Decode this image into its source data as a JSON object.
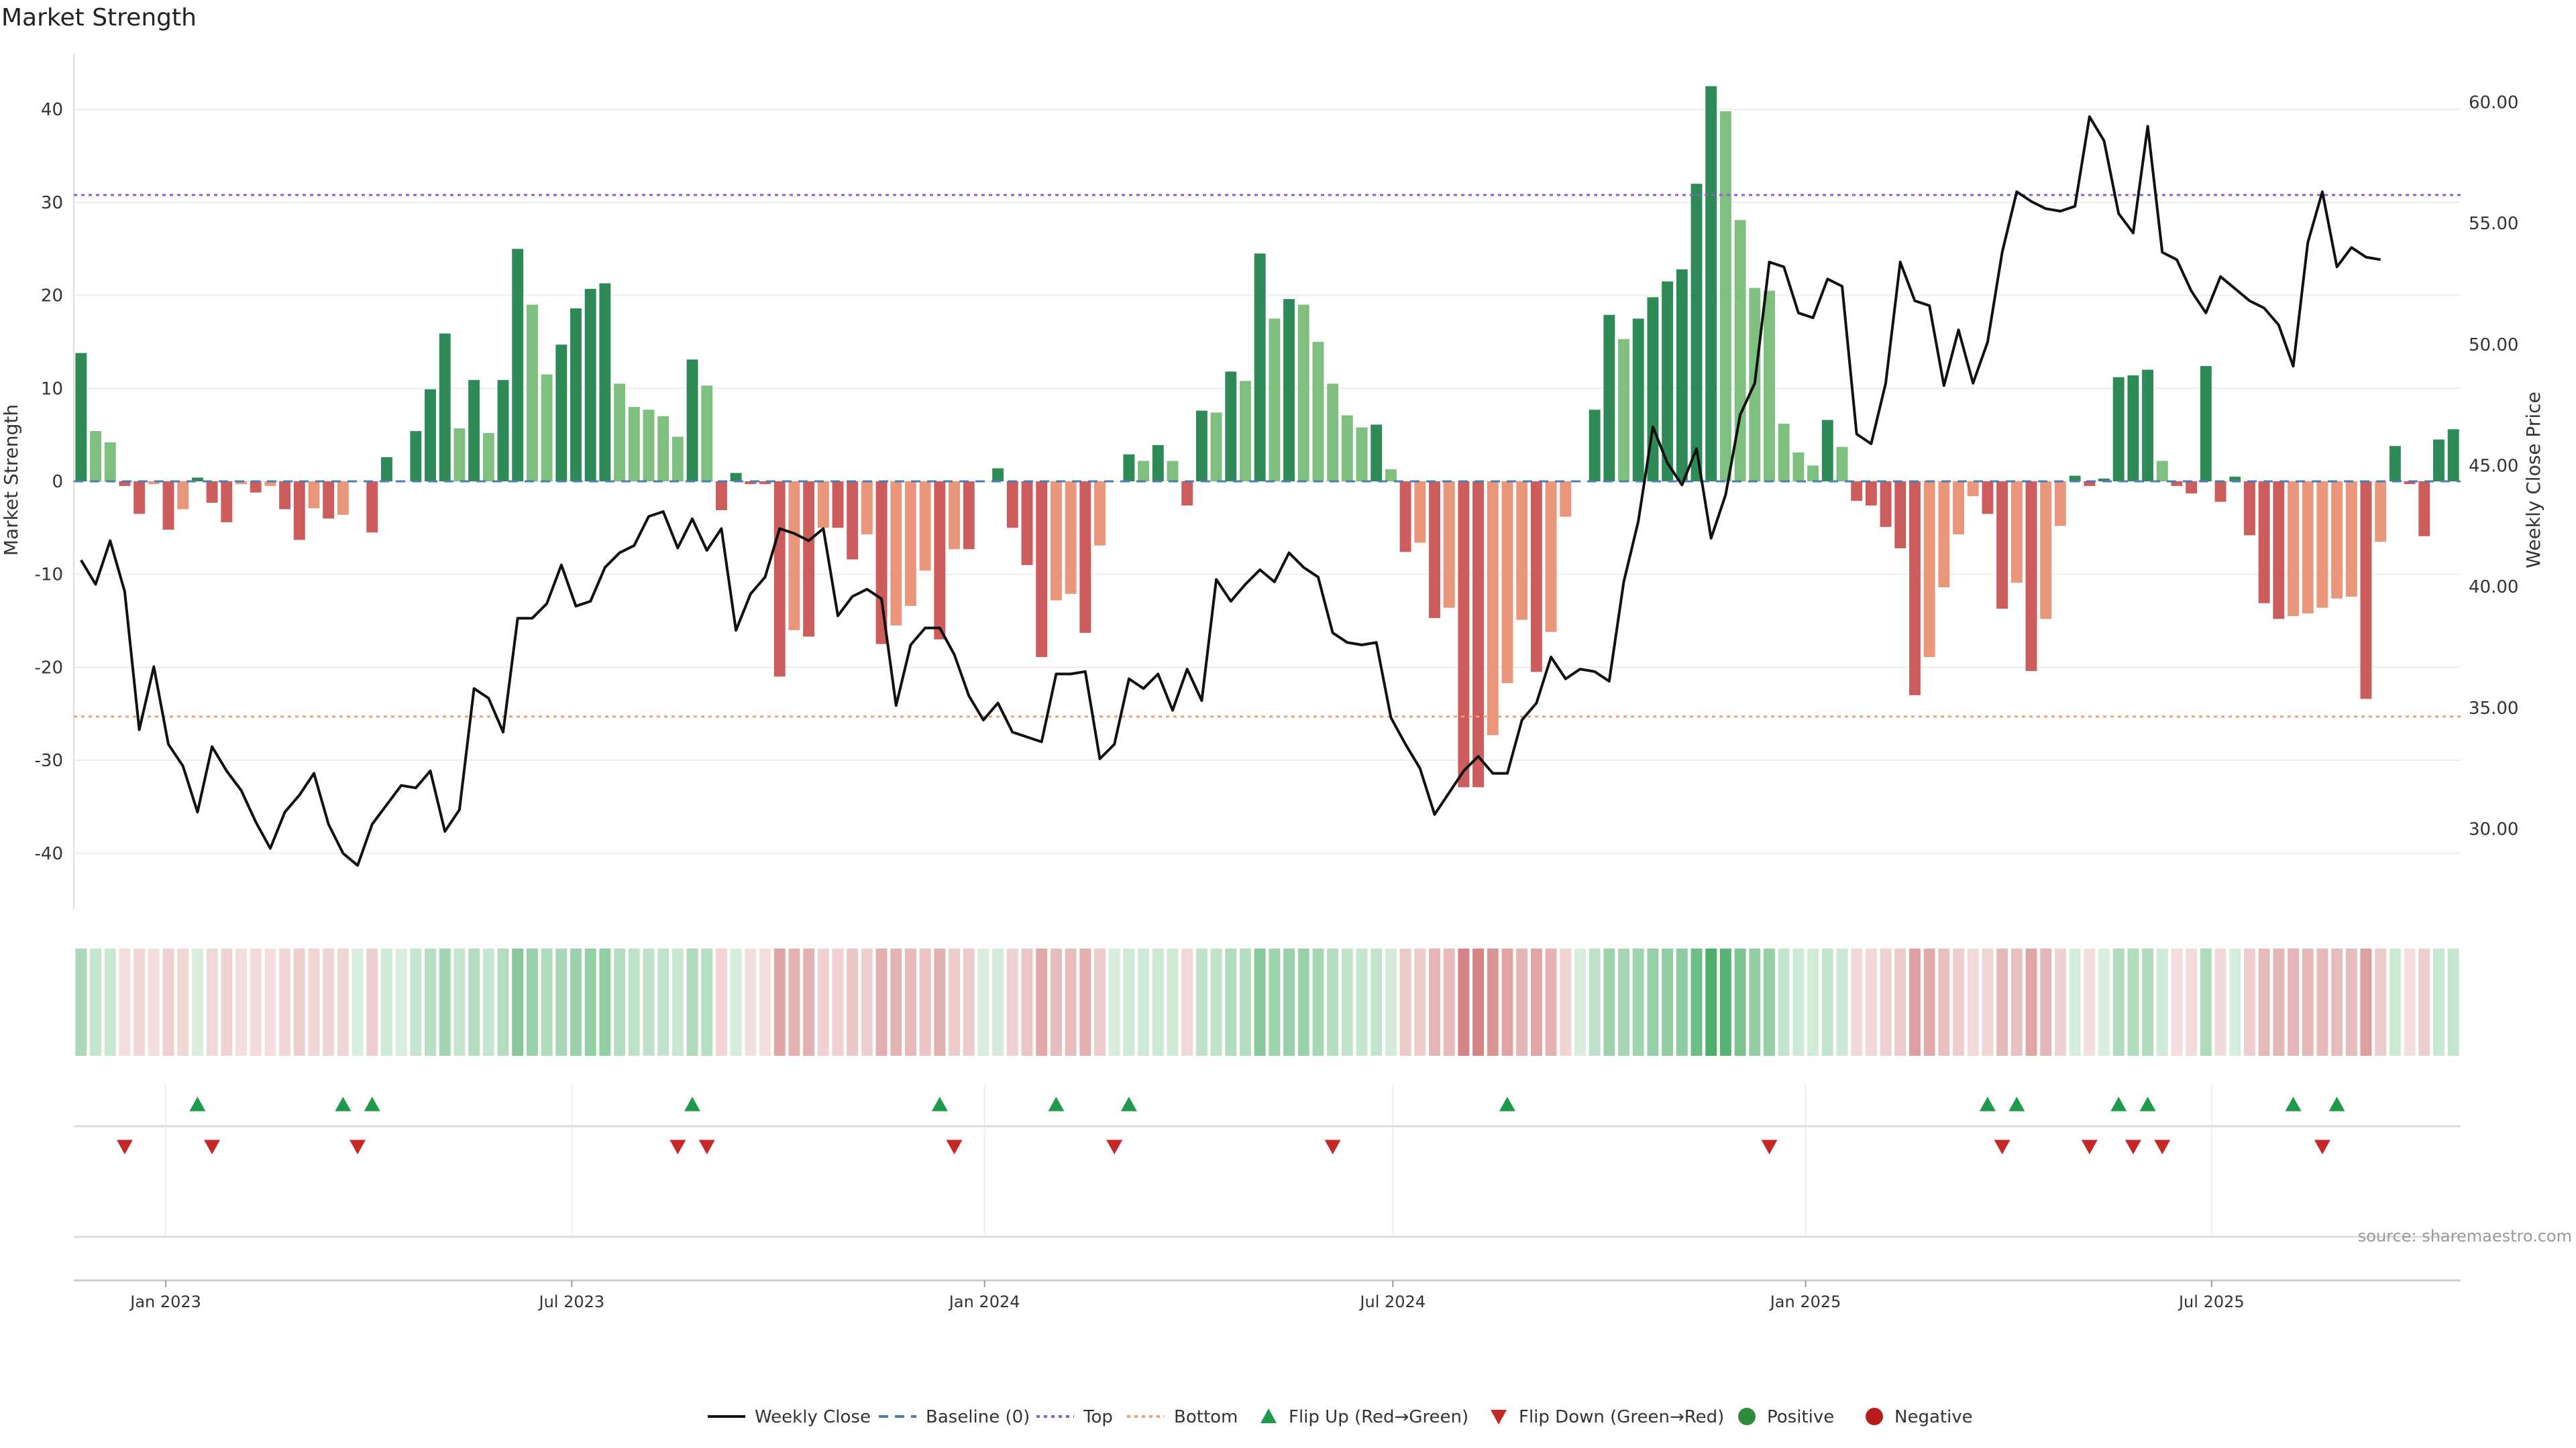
{
  "chart_data": {
    "type": "bar",
    "title": "Market Strength",
    "ylabel_left": "Market Strength",
    "ylabel_right": "Weekly Close Price",
    "ylim_left": [
      -46,
      46
    ],
    "ylim_right": [
      26.7,
      62.0
    ],
    "yticks_left": [
      "40",
      "30",
      "20",
      "10",
      "0",
      "-10",
      "-20",
      "-30",
      "-40"
    ],
    "yticks_left_values": [
      40,
      30,
      20,
      10,
      0,
      -10,
      -20,
      -30,
      -40
    ],
    "yticks_right": [
      "60.00",
      "55.00",
      "50.00",
      "45.00",
      "40.00",
      "35.00",
      "30.00"
    ],
    "yticks_right_values": [
      60,
      55,
      50,
      45,
      40,
      35,
      30
    ],
    "x_start": "2022-11-21",
    "x_end": "2025-10-20",
    "xticks": [
      {
        "date": "2023-01-01",
        "label": "Jan 2023"
      },
      {
        "date": "2023-07-01",
        "label": "Jul 2023"
      },
      {
        "date": "2024-01-01",
        "label": "Jan 2024"
      },
      {
        "date": "2024-07-01",
        "label": "Jul 2024"
      },
      {
        "date": "2025-01-01",
        "label": "Jan 2025"
      },
      {
        "date": "2025-07-01",
        "label": "Jul 2025"
      }
    ],
    "top_line": 30.8,
    "bottom_line": -25.3,
    "grid": true,
    "legend_placement": "bottom",
    "source": "source: sharemaestro.com",
    "legend": [
      {
        "label": "Weekly Close",
        "kind": "line-solid",
        "color": "#111111"
      },
      {
        "label": "Baseline (0)",
        "kind": "line-dash",
        "color": "#4a7db3"
      },
      {
        "label": "Top",
        "kind": "line-dot",
        "color": "#8a5fd6"
      },
      {
        "label": "Bottom",
        "kind": "line-dot",
        "color": "#f0a070"
      },
      {
        "label": "Flip Up (Red→Green)",
        "kind": "tri-up",
        "color": "#1f9a4a"
      },
      {
        "label": "Flip Down (Green→Red)",
        "kind": "tri-down",
        "color": "#c62828"
      },
      {
        "label": "Positive",
        "kind": "dot",
        "color": "#2e8b3a"
      },
      {
        "label": "Negative",
        "kind": "dot",
        "color": "#b71c1c"
      }
    ],
    "colors": {
      "pos_strong": "#2e8b57",
      "pos_weak": "#7fbf7f",
      "neg_strong": "#cd5c5c",
      "neg_weak": "#e9967a",
      "price": "#111111",
      "top": "#8a5fd6",
      "bottom": "#f0a070",
      "baseline": "#4a7db3"
    },
    "strength": [
      13.8,
      5.4,
      4.2,
      -0.5,
      -3.5,
      -0.3,
      -5.2,
      -3.0,
      0.4,
      -2.3,
      -4.4,
      -0.3,
      -1.2,
      -0.5,
      -3.0,
      -6.3,
      -2.9,
      -4.0,
      -3.6,
      0,
      -5.5,
      2.6,
      0,
      5.4,
      9.9,
      15.9,
      5.7,
      10.9,
      5.2,
      10.9,
      25.0,
      19.0,
      11.5,
      14.7,
      18.6,
      20.7,
      21.3,
      10.5,
      8.0,
      7.7,
      7.0,
      4.8,
      13.1,
      10.3,
      -3.1,
      0.9,
      -0.3,
      -0.3,
      -21.0,
      -16.0,
      -16.7,
      -5.0,
      -5.0,
      -8.4,
      -5.7,
      -17.5,
      -15.5,
      -13.4,
      -9.6,
      -17.0,
      -7.3,
      -7.3,
      0,
      1.4,
      -5.0,
      -9.0,
      -18.9,
      -12.8,
      -12.1,
      -16.3,
      -6.9,
      0,
      2.9,
      2.2,
      3.9,
      2.2,
      -2.6,
      7.6,
      7.4,
      11.8,
      10.8,
      24.5,
      17.5,
      19.6,
      19.0,
      15.0,
      10.5,
      7.1,
      5.8,
      6.1,
      1.3,
      -7.6,
      -6.6,
      -14.7,
      -13.6,
      -32.9,
      -32.9,
      -27.3,
      -21.7,
      -14.9,
      -20.5,
      -16.2,
      -3.8,
      0,
      7.7,
      17.9,
      15.3,
      17.5,
      19.8,
      21.5,
      22.8,
      32.0,
      42.5,
      39.8,
      28.1,
      20.8,
      20.5,
      6.2,
      3.1,
      1.7,
      6.6,
      3.7,
      -2.1,
      -2.6,
      -4.9,
      -7.2,
      -23.0,
      -18.9,
      -11.4,
      -5.7,
      -1.6,
      -3.5,
      -13.7,
      -10.9,
      -20.4,
      -14.8,
      -4.8,
      0.6,
      -0.5,
      0.3,
      11.2,
      11.4,
      12.0,
      2.2,
      -0.5,
      -1.3,
      12.4,
      -2.2,
      0.5,
      -5.8,
      -13.1,
      -14.8,
      -14.5,
      -14.2,
      -13.6,
      -12.6,
      -12.4,
      -23.4,
      -6.5,
      3.8,
      -0.3,
      -5.9,
      4.5,
      5.6
    ],
    "price": [
      41.1,
      40.1,
      41.9,
      39.8,
      34.1,
      36.7,
      33.5,
      32.6,
      30.7,
      33.4,
      32.4,
      31.6,
      30.3,
      29.2,
      30.7,
      31.4,
      32.3,
      30.2,
      29.0,
      28.5,
      30.2,
      31.0,
      31.8,
      31.7,
      32.4,
      29.9,
      30.8,
      35.8,
      35.4,
      34.0,
      38.7,
      38.7,
      39.3,
      40.9,
      39.2,
      39.4,
      40.8,
      41.4,
      41.7,
      42.9,
      43.1,
      41.6,
      42.8,
      41.5,
      42.4,
      38.2,
      39.7,
      40.4,
      42.4,
      42.2,
      41.9,
      42.4,
      38.8,
      39.6,
      39.9,
      39.5,
      35.1,
      37.6,
      38.3,
      38.3,
      37.2,
      35.5,
      34.5,
      35.2,
      34.0,
      33.8,
      33.6,
      36.4,
      36.4,
      36.5,
      32.9,
      33.5,
      36.2,
      35.8,
      36.4,
      34.9,
      36.6,
      35.3,
      40.3,
      39.4,
      40.1,
      40.7,
      40.2,
      41.4,
      40.8,
      40.4,
      38.1,
      37.7,
      37.6,
      37.7,
      34.6,
      33.5,
      32.5,
      30.6,
      31.5,
      32.4,
      33.0,
      32.3,
      32.3,
      34.5,
      35.2,
      37.1,
      36.2,
      36.6,
      36.5,
      36.1,
      40.2,
      42.7,
      46.6,
      45.1,
      44.2,
      45.7,
      42.0,
      43.8,
      47.1,
      48.4,
      53.4,
      53.2,
      51.3,
      51.1,
      52.7,
      52.4,
      46.3,
      45.9,
      48.4,
      53.4,
      51.8,
      51.6,
      48.3,
      50.6,
      48.4,
      50.1,
      53.8,
      56.3,
      55.9,
      55.6,
      55.5,
      55.7,
      59.4,
      58.4,
      55.4,
      54.6,
      59.0,
      53.8,
      53.5,
      52.2,
      51.3,
      52.8,
      52.3,
      51.8,
      51.5,
      50.8,
      49.1,
      54.2,
      56.3,
      53.2,
      54.0,
      53.6,
      53.5
    ],
    "flip_up": [
      8,
      18,
      20,
      42,
      59,
      67,
      72,
      98,
      131,
      133,
      140,
      142,
      152,
      155
    ],
    "flip_down": [
      3,
      9,
      19,
      41,
      43,
      60,
      71,
      86,
      116,
      132,
      138,
      141,
      143,
      154
    ]
  }
}
